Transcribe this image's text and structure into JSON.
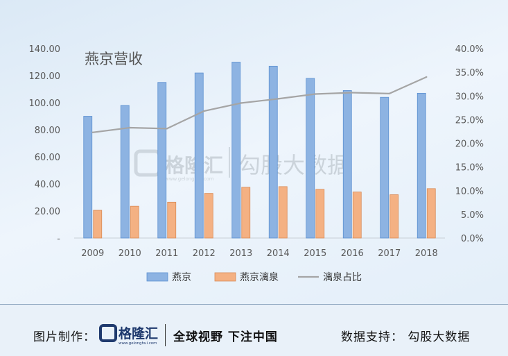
{
  "chart_data": {
    "type": "bar",
    "title": "燕京营收",
    "categories": [
      "2009",
      "2010",
      "2011",
      "2012",
      "2013",
      "2014",
      "2015",
      "2016",
      "2017",
      "2018"
    ],
    "series": [
      {
        "name": "燕京",
        "type": "bar",
        "axis": "left",
        "color": "#8db3e2",
        "values": [
          90,
          98,
          115,
          122,
          130,
          127,
          118,
          109,
          104,
          107
        ]
      },
      {
        "name": "燕京漓泉",
        "type": "bar",
        "axis": "left",
        "color": "#f4b183",
        "values": [
          20.5,
          23.5,
          26.5,
          33,
          37.5,
          38,
          36,
          34,
          32,
          36.5
        ]
      },
      {
        "name": "漓泉占比",
        "type": "line",
        "axis": "right",
        "color": "#a5a5a5",
        "values": [
          0.223,
          0.233,
          0.231,
          0.268,
          0.285,
          0.294,
          0.304,
          0.307,
          0.305,
          0.34
        ]
      }
    ],
    "y_left": {
      "min": 0,
      "max": 140,
      "ticks": [
        "-",
        "20.00",
        "40.00",
        "60.00",
        "80.00",
        "100.00",
        "120.00",
        "140.00"
      ]
    },
    "y_right": {
      "min": 0,
      "max": 0.4,
      "ticks": [
        "0.0%",
        "5.0%",
        "10.0%",
        "15.0%",
        "20.0%",
        "25.0%",
        "30.0%",
        "35.0%",
        "40.0%"
      ]
    },
    "legend_position": "bottom",
    "grid": false
  },
  "watermark": {
    "brand": "格隆汇",
    "domain": "www.gelonghui.com",
    "secondary": "勾股大数据"
  },
  "footer": {
    "made_by_label": "图片制作：",
    "logo_text": "格隆汇",
    "logo_sub": "www.gelonghui.com",
    "slogan": "全球视野 下注中国",
    "data_support": "数据支持：  勾股大数据"
  }
}
